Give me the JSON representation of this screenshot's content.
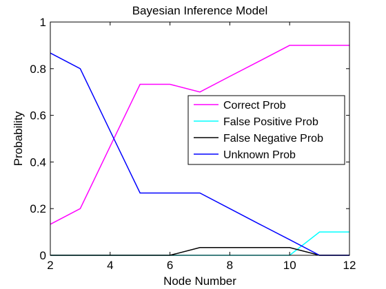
{
  "chart_data": {
    "type": "line",
    "title": "Bayesian Inference Model",
    "xlabel": "Node Number",
    "ylabel": "Probability",
    "xlim": [
      2,
      12
    ],
    "ylim": [
      0,
      1
    ],
    "xticks": [
      2,
      4,
      6,
      8,
      10,
      12
    ],
    "yticks": [
      0,
      0.2,
      0.4,
      0.6,
      0.8,
      1
    ],
    "ytick_labels": [
      "0",
      "0.2",
      "0.4",
      "0.6",
      "0.8",
      "1"
    ],
    "grid": false,
    "legend_position": "right",
    "x": [
      2,
      3,
      4,
      5,
      6,
      7,
      8,
      9,
      10,
      11,
      12
    ],
    "series": [
      {
        "name": "Correct Prob",
        "color": "#ff00ff",
        "values": [
          0.133,
          0.2,
          0.467,
          0.733,
          0.733,
          0.7,
          0.767,
          0.833,
          0.9,
          0.9,
          0.9
        ]
      },
      {
        "name": "False Positive Prob",
        "color": "#00ffff",
        "values": [
          0,
          0,
          0,
          0,
          0,
          0,
          0,
          0,
          0,
          0.1,
          0.1
        ]
      },
      {
        "name": "False Negative Prob",
        "color": "#000000",
        "values": [
          0,
          0,
          0,
          0,
          0,
          0.033,
          0.033,
          0.033,
          0.033,
          0,
          0
        ]
      },
      {
        "name": "Unknown Prob",
        "color": "#0000ff",
        "values": [
          0.867,
          0.8,
          0.533,
          0.267,
          0.267,
          0.267,
          0.2,
          0.133,
          0.067,
          0,
          0
        ]
      }
    ]
  }
}
